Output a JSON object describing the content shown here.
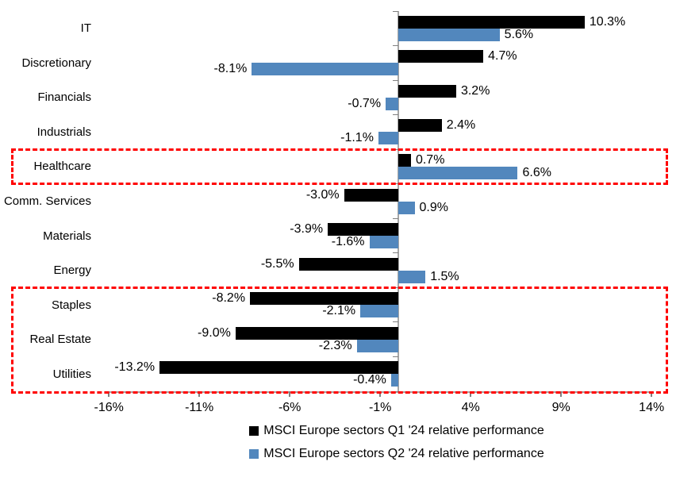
{
  "chart_data": {
    "type": "bar",
    "orientation": "horizontal",
    "categories": [
      "IT",
      "Discretionary",
      "Financials",
      "Industrials",
      "Healthcare",
      "Comm. Services",
      "Materials",
      "Energy",
      "Staples",
      "Real Estate",
      "Utilities"
    ],
    "series": [
      {
        "id": "q1",
        "name": "MSCI Europe sectors Q1 '24 relative performance",
        "color": "#000000",
        "values": [
          10.3,
          4.7,
          3.2,
          2.4,
          0.7,
          -3.0,
          -3.9,
          -5.5,
          -8.2,
          -9.0,
          -13.2
        ],
        "labels": [
          "10.3%",
          "4.7%",
          "3.2%",
          "2.4%",
          "0.7%",
          "-3.0%",
          "-3.9%",
          "-5.5%",
          "-8.2%",
          "-9.0%",
          "-13.2%"
        ]
      },
      {
        "id": "q2",
        "name": "MSCI Europe sectors Q2 '24 relative performance",
        "color": "#5287bd",
        "values": [
          5.6,
          -8.1,
          -0.7,
          -1.1,
          6.6,
          0.9,
          -1.6,
          1.5,
          -2.1,
          -2.3,
          -0.4
        ],
        "labels": [
          "5.6%",
          "-8.1%",
          "-0.7%",
          "-1.1%",
          "6.6%",
          "0.9%",
          "-1.6%",
          "1.5%",
          "-2.1%",
          "-2.3%",
          "-0.4%"
        ]
      }
    ],
    "x_ticks": [
      "-16%",
      "-11%",
      "-6%",
      "-1%",
      "4%",
      "9%",
      "14%"
    ],
    "x_tick_values": [
      -16,
      -11,
      -6,
      -1,
      4,
      9,
      14
    ],
    "xlim": [
      -16,
      14
    ],
    "grid": false,
    "legend_position": "bottom",
    "value_labels_shown": true,
    "highlight_boxes": [
      {
        "from": "Healthcare",
        "to": "Healthcare",
        "color": "#ff0000",
        "style": "dashed"
      },
      {
        "from": "Staples",
        "to": "Utilities",
        "color": "#ff0000",
        "style": "dashed"
      }
    ],
    "colors": {
      "q1_bar": "#000000",
      "q2_bar": "#5287bd",
      "highlight": "#ff0000",
      "axis_line": "#a6a6a6",
      "tick_mark": "#808080",
      "text": "#000000"
    }
  }
}
